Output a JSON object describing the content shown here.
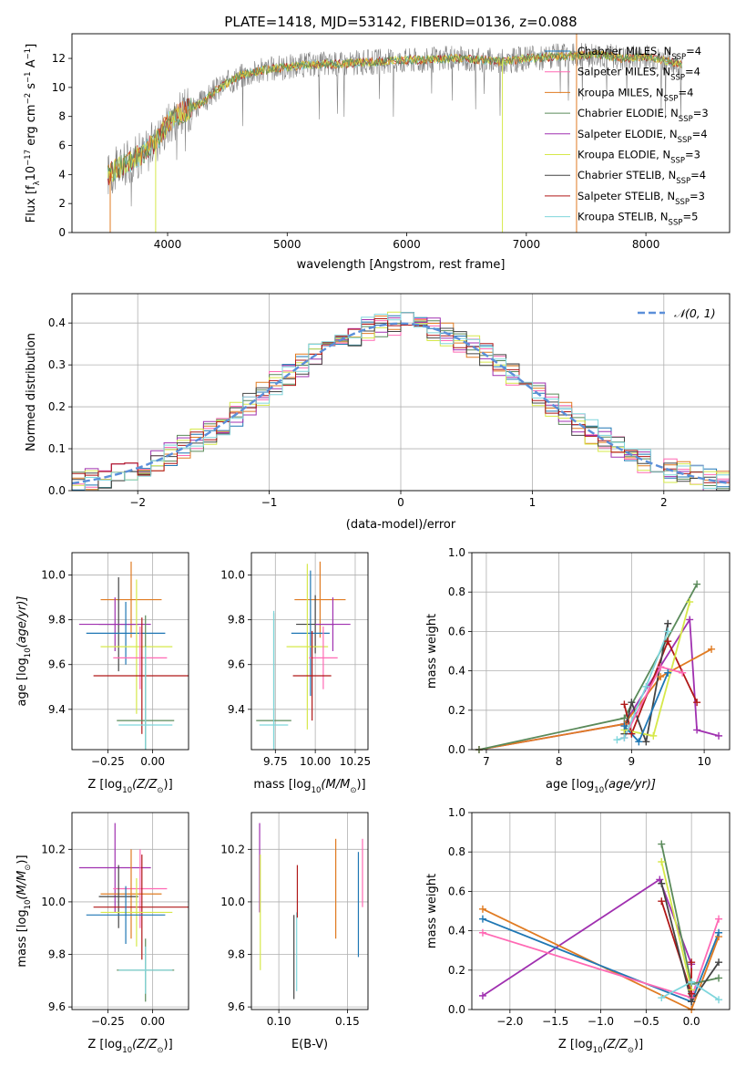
{
  "figure_title": "PLATE=1418, MJD=53142, FIBERID=0136, z=0.088",
  "colors": {
    "Chabrier MILES": "#1f77b4",
    "Salpeter MILES": "#ff69b4",
    "Kroupa MILES": "#e07b22",
    "Chabrier ELODIE": "#5a8a5a",
    "Salpeter ELODIE": "#a030b0",
    "Kroupa ELODIE": "#d6e84a",
    "Chabrier STELIB": "#444444",
    "Salpeter STELIB": "#b01818",
    "Kroupa STELIB": "#7fd6dc",
    "gaussian": "#5b8fd9",
    "data": "#808080",
    "grid": "#b0b0b0"
  },
  "chart_data": [
    {
      "id": "spectrum",
      "type": "line",
      "xlabel": "wavelength [Angstrom, rest frame]",
      "ylabel": "Flux [f",
      "ylabel_parts": [
        "Flux [f",
        "λ",
        "10",
        "−17",
        " erg cm",
        "−2",
        " s",
        "−1",
        " A",
        "−1",
        "]"
      ],
      "xlim": [
        3200,
        8700
      ],
      "ylim": [
        0,
        13.7
      ],
      "xticks": [
        "4000",
        "5000",
        "6000",
        "7000",
        "8000"
      ],
      "xtick_values": [
        4000,
        5000,
        6000,
        7000,
        8000
      ],
      "yticks": [
        "0",
        "2",
        "4",
        "6",
        "8",
        "10",
        "12"
      ],
      "ytick_values": [
        0,
        2,
        4,
        6,
        8,
        10,
        12
      ],
      "grid": false,
      "legend_position": "right",
      "continuum_x": [
        3500,
        3600,
        3700,
        3800,
        3900,
        4000,
        4100,
        4200,
        4300,
        4400,
        4500,
        4600,
        4800,
        5000,
        5200,
        5400,
        5600,
        5800,
        6000,
        6200,
        6400,
        6600,
        6800,
        7000,
        7200,
        7400,
        7600,
        7800,
        8000,
        8200,
        8300
      ],
      "continuum_y": [
        4.0,
        4.5,
        5.0,
        5.5,
        6.3,
        7.5,
        8.2,
        8.6,
        9.0,
        9.8,
        10.3,
        10.8,
        11.2,
        11.4,
        11.6,
        11.6,
        11.7,
        11.8,
        11.9,
        11.9,
        12.0,
        11.9,
        11.8,
        12.0,
        12.1,
        12.2,
        12.3,
        12.0,
        12.1,
        11.8,
        11.6
      ],
      "legend": [
        {
          "label": "Chabrier MILES, N",
          "sub": "SSP",
          "suffix": "=4"
        },
        {
          "label": "Salpeter MILES, N",
          "sub": "SSP",
          "suffix": "=4"
        },
        {
          "label": "Kroupa MILES, N",
          "sub": "SSP",
          "suffix": "=4"
        },
        {
          "label": "Chabrier ELODIE, N",
          "sub": "SSP",
          "suffix": "=3"
        },
        {
          "label": "Salpeter ELODIE, N",
          "sub": "SSP",
          "suffix": "=4"
        },
        {
          "label": "Kroupa ELODIE, N",
          "sub": "SSP",
          "suffix": "=3"
        },
        {
          "label": "Chabrier STELIB, N",
          "sub": "SSP",
          "suffix": "=4"
        },
        {
          "label": "Salpeter STELIB, N",
          "sub": "SSP",
          "suffix": "=3"
        },
        {
          "label": "Kroupa STELIB, N",
          "sub": "SSP",
          "suffix": "=5"
        }
      ]
    },
    {
      "id": "residuals",
      "type": "histogram",
      "xlabel": "(data-model)/error",
      "ylabel": "Normed distribution",
      "xlim": [
        -2.5,
        2.5
      ],
      "ylim": [
        0,
        0.47
      ],
      "xticks": [
        "−2",
        "−1",
        "0",
        "1",
        "2"
      ],
      "xtick_values": [
        -2,
        -1,
        0,
        1,
        2
      ],
      "yticks": [
        "0.0",
        "0.1",
        "0.2",
        "0.3",
        "0.4"
      ],
      "ytick_values": [
        0,
        0.1,
        0.2,
        0.3,
        0.4
      ],
      "grid": true,
      "bin_width": 0.1,
      "legend_label": "𝒩(0, 1)",
      "gaussian": {
        "mean": 0,
        "sigma": 1
      }
    },
    {
      "id": "age-vs-Z",
      "type": "scatter",
      "xlabel": "Z [log",
      "xlabel_parts": [
        "Z [log",
        "10",
        "(Z/Z",
        "⊙",
        ")]"
      ],
      "ylabel_parts": [
        "age  [log",
        "10",
        "(age/yr)]"
      ],
      "xlim": [
        -0.45,
        0.2
      ],
      "ylim": [
        9.22,
        10.1
      ],
      "xticks": [
        "−0.25",
        "0.00"
      ],
      "xtick_values": [
        -0.25,
        0.0
      ],
      "yticks": [
        "9.4",
        "9.6",
        "9.8",
        "10.0"
      ],
      "ytick_values": [
        9.4,
        9.6,
        9.8,
        10.0
      ],
      "grid": true,
      "points": [
        {
          "model": "Kroupa MILES",
          "x": -0.12,
          "xerr": 0.17,
          "y": 9.89,
          "yerr": 0.17
        },
        {
          "model": "Chabrier STELIB",
          "x": -0.19,
          "xerr": 0.11,
          "y": 9.78,
          "yerr": 0.21
        },
        {
          "model": "Salpeter ELODIE",
          "x": -0.21,
          "xerr": 0.2,
          "y": 9.78,
          "yerr": 0.12
        },
        {
          "model": "Chabrier MILES",
          "x": -0.15,
          "xerr": 0.22,
          "y": 9.74,
          "yerr": 0.14
        },
        {
          "model": "Kroupa ELODIE",
          "x": -0.09,
          "xerr": 0.2,
          "y": 9.68,
          "yerr": 0.3
        },
        {
          "model": "Salpeter MILES",
          "x": -0.07,
          "xerr": 0.15,
          "y": 9.63,
          "yerr": 0.14
        },
        {
          "model": "Salpeter STELIB",
          "x": -0.06,
          "xerr": 0.27,
          "y": 9.55,
          "yerr": 0.26
        },
        {
          "model": "Chabrier ELODIE",
          "x": -0.04,
          "xerr": 0.16,
          "y": 9.35,
          "yerr": 0.47
        },
        {
          "model": "Kroupa STELIB",
          "x": -0.04,
          "xerr": 0.15,
          "y": 9.33,
          "yerr": 0.35
        }
      ]
    },
    {
      "id": "age-vs-mass",
      "type": "scatter",
      "xlabel_parts": [
        "mass [log",
        "10",
        "(M/M",
        "⊙",
        ")]"
      ],
      "xlim": [
        9.6,
        10.33
      ],
      "ylim": [
        9.22,
        10.1
      ],
      "xticks": [
        "9.75",
        "10.00",
        "10.25"
      ],
      "xtick_values": [
        9.75,
        10.0,
        10.25
      ],
      "yticks": [
        "9.4",
        "9.6",
        "9.8",
        "10.0"
      ],
      "ytick_values": [
        9.4,
        9.6,
        9.8,
        10.0
      ],
      "grid": true,
      "points": [
        {
          "model": "Kroupa MILES",
          "x": 10.03,
          "xerr": 0.16,
          "y": 9.89,
          "yerr": 0.17
        },
        {
          "model": "Chabrier STELIB",
          "x": 10.0,
          "xerr": 0.12,
          "y": 9.78,
          "yerr": 0.13
        },
        {
          "model": "Salpeter ELODIE",
          "x": 10.11,
          "xerr": 0.11,
          "y": 9.78,
          "yerr": 0.12
        },
        {
          "model": "Chabrier MILES",
          "x": 9.97,
          "xerr": 0.12,
          "y": 9.74,
          "yerr": 0.28
        },
        {
          "model": "Kroupa ELODIE",
          "x": 9.95,
          "xerr": 0.13,
          "y": 9.68,
          "yerr": 0.37
        },
        {
          "model": "Salpeter MILES",
          "x": 10.05,
          "xerr": 0.09,
          "y": 9.63,
          "yerr": 0.14
        },
        {
          "model": "Salpeter STELIB",
          "x": 9.98,
          "xerr": 0.12,
          "y": 9.55,
          "yerr": 0.2
        },
        {
          "model": "Chabrier ELODIE",
          "x": 9.74,
          "xerr": 0.11,
          "y": 9.35,
          "yerr": 0.48
        },
        {
          "model": "Kroupa STELIB",
          "x": 9.74,
          "xerr": 0.09,
          "y": 9.33,
          "yerr": 0.51
        }
      ]
    },
    {
      "id": "weight-vs-age",
      "type": "line",
      "xlabel_parts": [
        "age  [log",
        "10",
        "(age/yr)]"
      ],
      "ylabel": "mass weight",
      "xlim": [
        6.8,
        10.35
      ],
      "ylim": [
        0,
        1.0
      ],
      "xticks": [
        "7",
        "8",
        "9",
        "10"
      ],
      "xtick_values": [
        7,
        8,
        9,
        10
      ],
      "yticks": [
        "0.0",
        "0.2",
        "0.4",
        "0.6",
        "0.8",
        "1.0"
      ],
      "ytick_values": [
        0,
        0.2,
        0.4,
        0.6,
        0.8,
        1.0
      ],
      "grid": true,
      "series": [
        {
          "model": "Salpeter ELODIE",
          "x": [
            6.9,
            8.9,
            9.8,
            9.9,
            10.2
          ],
          "y": [
            0.0,
            0.13,
            0.66,
            0.1,
            0.07
          ]
        },
        {
          "model": "Kroupa MILES",
          "x": [
            6.9,
            8.9,
            9.4,
            10.1
          ],
          "y": [
            0.0,
            0.13,
            0.37,
            0.51
          ]
        },
        {
          "model": "Chabrier ELODIE",
          "x": [
            6.9,
            8.9,
            9.9
          ],
          "y": [
            0.0,
            0.16,
            0.84
          ]
        },
        {
          "model": "Salpeter STELIB",
          "x": [
            8.9,
            9.0,
            9.5,
            9.9
          ],
          "y": [
            0.23,
            0.08,
            0.55,
            0.24
          ]
        },
        {
          "model": "Chabrier STELIB",
          "x": [
            8.9,
            9.0,
            9.2,
            9.5
          ],
          "y": [
            0.08,
            0.24,
            0.04,
            0.64
          ]
        },
        {
          "model": "Kroupa ELODIE",
          "x": [
            8.9,
            9.3,
            9.8
          ],
          "y": [
            0.1,
            0.07,
            0.75
          ]
        },
        {
          "model": "Salpeter MILES",
          "x": [
            8.9,
            9.4,
            9.7
          ],
          "y": [
            0.06,
            0.42,
            0.39
          ]
        },
        {
          "model": "Chabrier MILES",
          "x": [
            8.9,
            9.1,
            9.5
          ],
          "y": [
            0.12,
            0.04,
            0.39
          ]
        },
        {
          "model": "Kroupa STELIB",
          "x": [
            8.8,
            8.9,
            9.2,
            9.5
          ],
          "y": [
            0.05,
            0.06,
            0.32,
            0.6
          ]
        }
      ]
    },
    {
      "id": "mass-vs-Z",
      "type": "scatter",
      "xlabel_parts": [
        "Z [log",
        "10",
        "(Z/Z",
        "⊙",
        ")]"
      ],
      "ylabel_parts": [
        "mass [log",
        "10",
        "(M/M",
        "⊙",
        ")]"
      ],
      "xlim": [
        -0.45,
        0.2
      ],
      "ylim": [
        9.59,
        10.34
      ],
      "xticks": [
        "−0.25",
        "0.00"
      ],
      "xtick_values": [
        -0.25,
        0.0
      ],
      "yticks": [
        "9.6",
        "9.8",
        "10.0",
        "10.2"
      ],
      "ytick_values": [
        9.6,
        9.8,
        10.0,
        10.2
      ],
      "grid": true,
      "points": [
        {
          "model": "Salpeter ELODIE",
          "x": -0.21,
          "xerr": 0.2,
          "y": 10.13,
          "yerr": 0.17
        },
        {
          "model": "Salpeter MILES",
          "x": -0.07,
          "xerr": 0.15,
          "y": 10.05,
          "yerr": 0.15
        },
        {
          "model": "Kroupa MILES",
          "x": -0.12,
          "xerr": 0.17,
          "y": 10.03,
          "yerr": 0.17
        },
        {
          "model": "Chabrier STELIB",
          "x": -0.19,
          "xerr": 0.11,
          "y": 10.02,
          "yerr": 0.12
        },
        {
          "model": "Salpeter STELIB",
          "x": -0.06,
          "xerr": 0.27,
          "y": 9.98,
          "yerr": 0.2
        },
        {
          "model": "Kroupa ELODIE",
          "x": -0.09,
          "xerr": 0.2,
          "y": 9.96,
          "yerr": 0.13
        },
        {
          "model": "Chabrier MILES",
          "x": -0.15,
          "xerr": 0.22,
          "y": 9.95,
          "yerr": 0.11
        },
        {
          "model": "Chabrier ELODIE",
          "x": -0.04,
          "xerr": 0.16,
          "y": 9.74,
          "yerr": 0.12
        },
        {
          "model": "Kroupa STELIB",
          "x": -0.04,
          "xerr": 0.15,
          "y": 9.74,
          "yerr": 0.09
        }
      ]
    },
    {
      "id": "mass-vs-EBV",
      "type": "scatter",
      "xlabel": "E(B-V)",
      "xlim": [
        0.08,
        0.165
      ],
      "ylim": [
        9.59,
        10.34
      ],
      "xticks": [
        "0.10",
        "0.15"
      ],
      "xtick_values": [
        0.1,
        0.15
      ],
      "yticks": [
        "9.6",
        "9.8",
        "10.0",
        "10.2"
      ],
      "ytick_values": [
        9.6,
        9.8,
        10.0,
        10.2
      ],
      "grid": true,
      "points": [
        {
          "model": "Salpeter ELODIE",
          "x": 0.086,
          "xerr": 0,
          "y": 10.13,
          "yerr": 0.17
        },
        {
          "model": "Kroupa ELODIE",
          "x": 0.0865,
          "xerr": 0,
          "y": 9.96,
          "yerr": 0.22
        },
        {
          "model": "Chabrier STELIB",
          "x": 0.111,
          "xerr": 0,
          "y": 9.79,
          "yerr": 0.16
        },
        {
          "model": "Kroupa STELIB",
          "x": 0.113,
          "xerr": 0,
          "y": 9.81,
          "yerr": 0.15
        },
        {
          "model": "Salpeter STELIB",
          "x": 0.1135,
          "xerr": 0,
          "y": 10.04,
          "yerr": 0.1
        },
        {
          "model": "Kroupa MILES",
          "x": 0.1415,
          "xerr": 0,
          "y": 10.05,
          "yerr": 0.19
        },
        {
          "model": "Chabrier MILES",
          "x": 0.158,
          "xerr": 0,
          "y": 9.99,
          "yerr": 0.2
        },
        {
          "model": "Salpeter MILES",
          "x": 0.161,
          "xerr": 0,
          "y": 10.11,
          "yerr": 0.13
        }
      ]
    },
    {
      "id": "weight-vs-Z",
      "type": "line",
      "xlabel_parts": [
        "Z [log",
        "10",
        "(Z/Z",
        "⊙",
        ")]"
      ],
      "ylabel": "mass weight",
      "xlim": [
        -2.42,
        0.42
      ],
      "ylim": [
        0,
        1.0
      ],
      "xticks": [
        "−2.0",
        "−1.5",
        "−1.0",
        "−0.5",
        "0.0"
      ],
      "xtick_values": [
        -2.0,
        -1.5,
        -1.0,
        -0.5,
        0.0
      ],
      "yticks": [
        "0.0",
        "0.2",
        "0.4",
        "0.6",
        "0.8",
        "1.0"
      ],
      "ytick_values": [
        0,
        0.2,
        0.4,
        0.6,
        0.8,
        1.0
      ],
      "grid": true,
      "series": [
        {
          "model": "Salpeter ELODIE",
          "x": [
            -2.3,
            -0.35,
            0.0
          ],
          "y": [
            0.07,
            0.66,
            0.23
          ]
        },
        {
          "model": "Kroupa MILES",
          "x": [
            -2.3,
            0.0,
            0.3
          ],
          "y": [
            0.51,
            0.0,
            0.37
          ]
        },
        {
          "model": "Chabrier MILES",
          "x": [
            -2.3,
            0.0,
            0.3
          ],
          "y": [
            0.46,
            0.04,
            0.39
          ]
        },
        {
          "model": "Salpeter MILES",
          "x": [
            -2.3,
            0.0,
            0.3
          ],
          "y": [
            0.39,
            0.06,
            0.46
          ]
        },
        {
          "model": "Chabrier ELODIE",
          "x": [
            -0.33,
            0.0,
            0.3
          ],
          "y": [
            0.84,
            0.13,
            0.16
          ]
        },
        {
          "model": "Kroupa ELODIE",
          "x": [
            -0.33,
            0.0
          ],
          "y": [
            0.75,
            0.1
          ]
        },
        {
          "model": "Salpeter STELIB",
          "x": [
            -0.33,
            0.0,
            0.0
          ],
          "y": [
            0.55,
            0.08,
            0.24
          ]
        },
        {
          "model": "Chabrier STELIB",
          "x": [
            -0.33,
            0.0,
            0.3
          ],
          "y": [
            0.64,
            0.04,
            0.24
          ]
        },
        {
          "model": "Kroupa STELIB",
          "x": [
            -0.33,
            0.0,
            0.3
          ],
          "y": [
            0.06,
            0.14,
            0.05
          ]
        }
      ]
    }
  ]
}
